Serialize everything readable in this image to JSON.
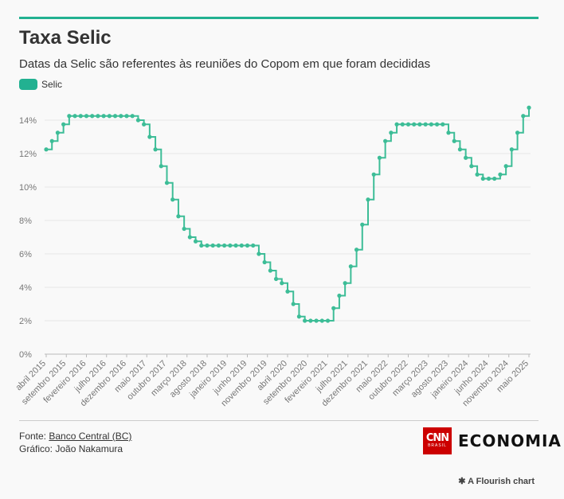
{
  "header": {
    "title": "Taxa Selic",
    "subtitle": "Datas da Selic são referentes às reuniões do Copom em que foram decididas"
  },
  "footer": {
    "source_prefix": "Fonte: ",
    "source_link": "Banco Central (BC)",
    "credit": "Gráfico: João Nakamura",
    "brand_logo": "CNN",
    "brand_logo_sub": "BRASIL",
    "brand_name": "ECONOMIA",
    "flourish_icon": "asterisk-icon",
    "flourish": "A Flourish chart"
  },
  "colors": {
    "accent": "#22b191",
    "line": "#3dbd97"
  },
  "chart_data": {
    "type": "line",
    "style": "step",
    "ylim": [
      0,
      15
    ],
    "yticks": [
      0,
      2,
      4,
      6,
      8,
      10,
      12,
      14
    ],
    "ytick_labels": [
      "0%",
      "2%",
      "4%",
      "6%",
      "8%",
      "10%",
      "12%",
      "14%"
    ],
    "x_tick_labels": [
      "abril 2015",
      "setembro 2015",
      "fevereiro 2016",
      "julho 2016",
      "dezembro 2016",
      "maio 2017",
      "outubro 2017",
      "março 2018",
      "agosto 2018",
      "janeiro 2019",
      "junho 2019",
      "novembro 2019",
      "abril 2020",
      "setembro 2020",
      "fevereiro 2021",
      "julho 2021",
      "dezembro 2021",
      "maio 2022",
      "outubro 2022",
      "março 2023",
      "agosto 2023",
      "janeiro 2024",
      "junho 2024",
      "novembro 2024",
      "maio 2025"
    ],
    "grid": true,
    "legend": "top-left",
    "series": [
      {
        "name": "Selic",
        "color": "#3dbd97",
        "values": [
          12.25,
          12.75,
          13.25,
          13.75,
          14.25,
          14.25,
          14.25,
          14.25,
          14.25,
          14.25,
          14.25,
          14.25,
          14.25,
          14.25,
          14.25,
          14.25,
          14.0,
          13.75,
          13.0,
          12.25,
          11.25,
          10.25,
          9.25,
          8.25,
          7.5,
          7.0,
          6.75,
          6.5,
          6.5,
          6.5,
          6.5,
          6.5,
          6.5,
          6.5,
          6.5,
          6.5,
          6.5,
          6.0,
          5.5,
          5.0,
          4.5,
          4.25,
          3.75,
          3.0,
          2.25,
          2.0,
          2.0,
          2.0,
          2.0,
          2.0,
          2.75,
          3.5,
          4.25,
          5.25,
          6.25,
          7.75,
          9.25,
          10.75,
          11.75,
          12.75,
          13.25,
          13.75,
          13.75,
          13.75,
          13.75,
          13.75,
          13.75,
          13.75,
          13.75,
          13.75,
          13.25,
          12.75,
          12.25,
          11.75,
          11.25,
          10.75,
          10.5,
          10.5,
          10.5,
          10.75,
          11.25,
          12.25,
          13.25,
          14.25,
          14.75
        ]
      }
    ]
  }
}
